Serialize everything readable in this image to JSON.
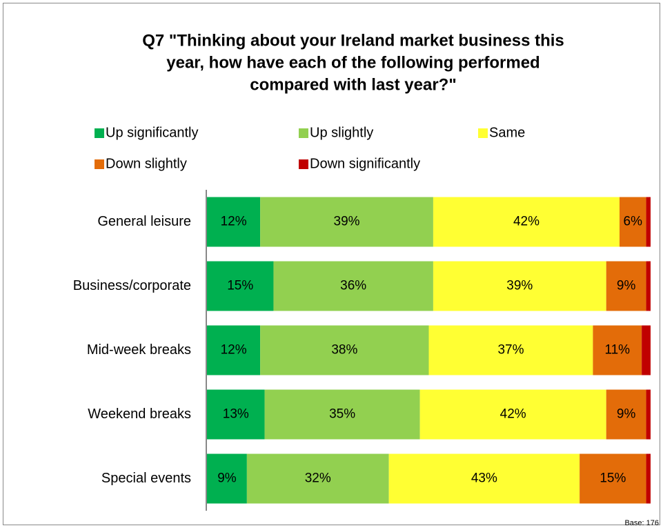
{
  "chart_data": {
    "type": "stacked_bar_horizontal",
    "title": [
      "Q7 \"Thinking about your Ireland market business this",
      "year, how have each of the following performed",
      "compared with last year?\""
    ],
    "categories": [
      "General leisure",
      "Business/corporate",
      "Mid-week breaks",
      "Weekend breaks",
      "Special events"
    ],
    "series": [
      {
        "name": "Up significantly",
        "color": "#00b050",
        "values": [
          12,
          15,
          12,
          13,
          9
        ],
        "value_labels": [
          "12%",
          "15%",
          "12%",
          "13%",
          "9%"
        ]
      },
      {
        "name": "Up slightly",
        "color": "#92d050",
        "values": [
          39,
          36,
          38,
          35,
          32
        ],
        "value_labels": [
          "39%",
          "36%",
          "38%",
          "35%",
          "32%"
        ]
      },
      {
        "name": "Same",
        "color": "#ffff33",
        "values": [
          42,
          39,
          37,
          42,
          43
        ],
        "value_labels": [
          "42%",
          "39%",
          "37%",
          "42%",
          "43%"
        ]
      },
      {
        "name": "Down slightly",
        "color": "#e36c09",
        "values": [
          6,
          9,
          11,
          9,
          15
        ],
        "value_labels": [
          "6%",
          "9%",
          "11%",
          "9%",
          "15%"
        ]
      },
      {
        "name": "Down significantly",
        "color": "#c00000",
        "values": [
          1,
          1,
          2,
          1,
          1
        ]
      }
    ],
    "xlim": [
      0,
      100
    ],
    "footnote": "Base: 176"
  }
}
